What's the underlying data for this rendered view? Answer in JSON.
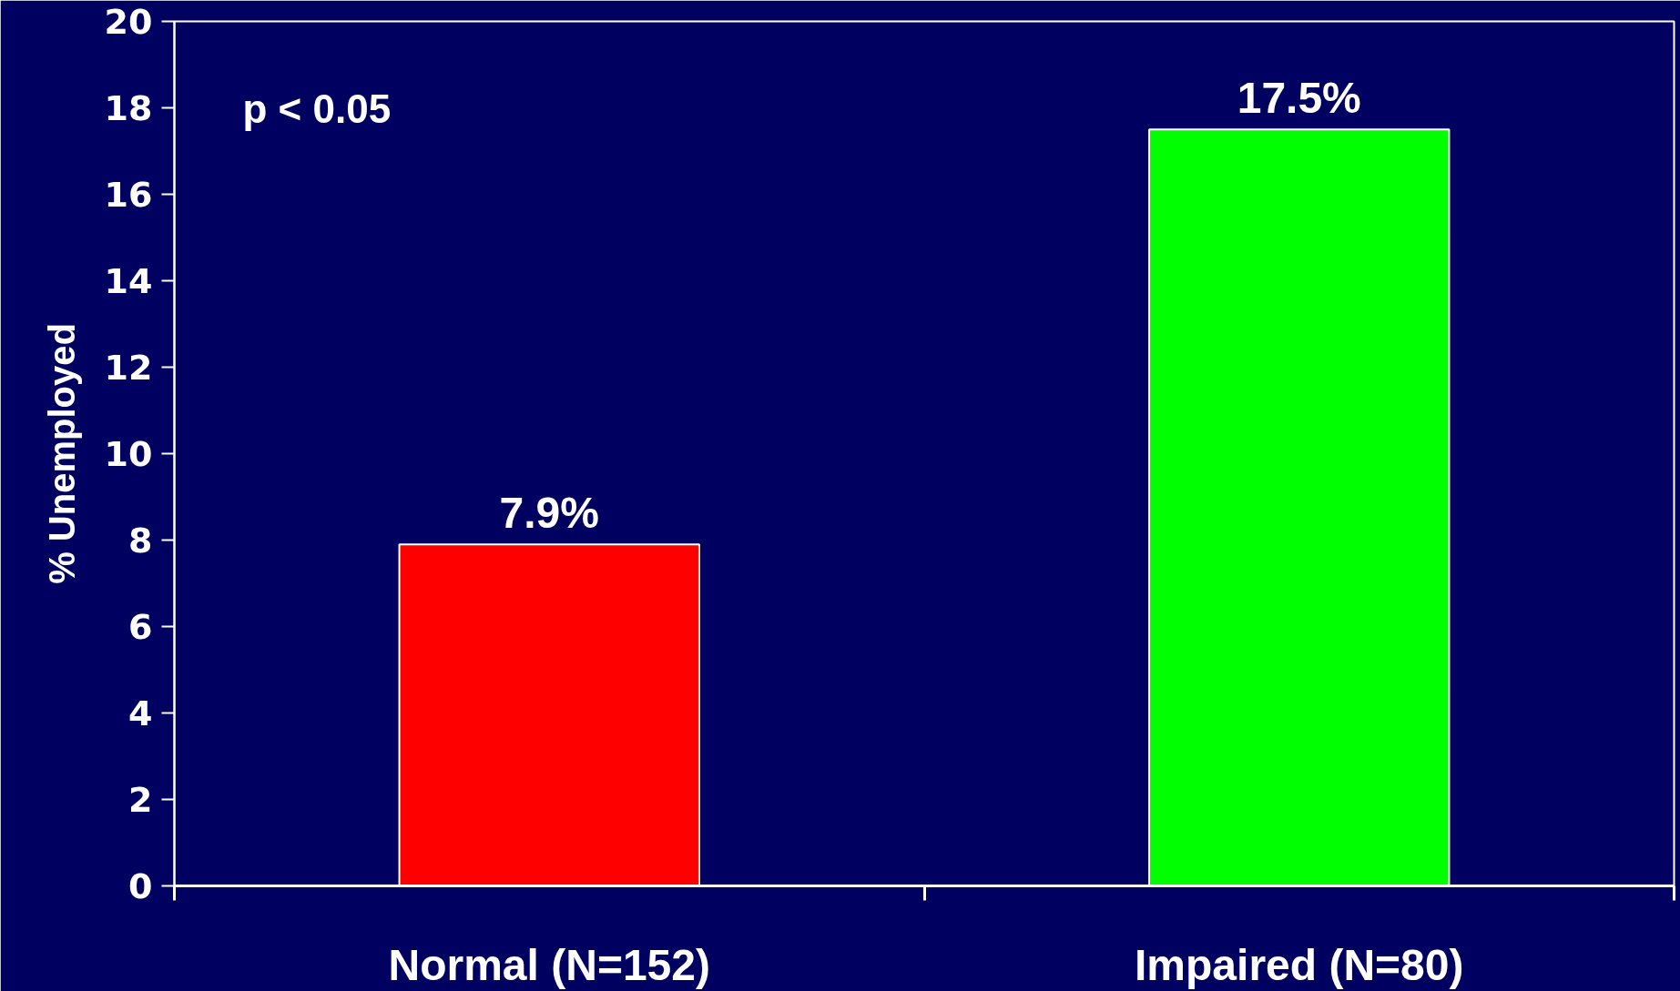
{
  "chart_data": {
    "type": "bar",
    "ylabel": "% Unemployed",
    "categories": [
      "Normal (N=152)",
      "Impaired (N=80)"
    ],
    "values": [
      7.9,
      17.5
    ],
    "colors": [
      "#ff0000",
      "#00ff00"
    ],
    "value_labels": [
      "7.9%",
      "17.5%"
    ],
    "ylim": [
      0,
      20
    ],
    "yticks": [
      0,
      2,
      4,
      6,
      8,
      10,
      12,
      14,
      16,
      18,
      20
    ],
    "annotations": [
      "p < 0.05"
    ]
  }
}
